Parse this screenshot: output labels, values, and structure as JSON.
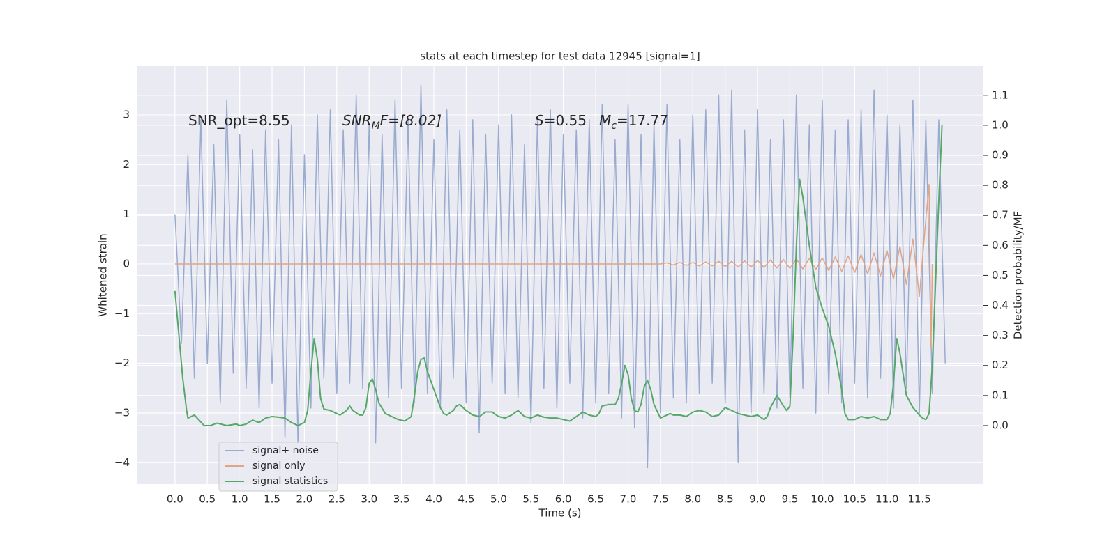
{
  "chart_data": {
    "type": "line",
    "title": "stats at each timestep for test data 12945 [signal=1]",
    "x_label": "Time (s)",
    "y_label": "Whitened strain",
    "y2_label": "Detection probability/MF",
    "xlim": [
      -0.58,
      12.49
    ],
    "ylim": [
      -4.43,
      3.98
    ],
    "y2lim": [
      -0.195,
      1.197
    ],
    "xticks": [
      {
        "value": 0,
        "label": "0.0"
      },
      0.5,
      {
        "value": 1,
        "label": "1.0"
      },
      1.5,
      {
        "value": 2,
        "label": "2.0"
      },
      2.5,
      {
        "value": 3,
        "label": "3.0"
      },
      3.5,
      {
        "value": 4,
        "label": "4.0"
      },
      4.5,
      {
        "value": 5,
        "label": "5.0"
      },
      5.5,
      {
        "value": 6,
        "label": "6.0"
      },
      6.5,
      {
        "value": 7,
        "label": "7.0"
      },
      7.5,
      {
        "value": 8,
        "label": "8.0"
      },
      8.5,
      {
        "value": 9,
        "label": "9.0"
      },
      9.5,
      {
        "value": 10,
        "label": "10.0"
      },
      10.5,
      {
        "value": 11,
        "label": "11.0"
      },
      11.5
    ],
    "yticks": [
      {
        "value": -4,
        "label": "−4"
      },
      {
        "value": -3,
        "label": "−3"
      },
      {
        "value": -2,
        "label": "−2"
      },
      {
        "value": -1,
        "label": "−1"
      },
      0,
      1,
      2,
      3
    ],
    "y2ticks": [
      {
        "value": 0,
        "label": "0.0"
      },
      0.1,
      0.2,
      0.3,
      0.4,
      0.5,
      0.6,
      0.7,
      0.8,
      0.9,
      {
        "value": 1,
        "label": "1.0"
      },
      1.1
    ],
    "grid": true,
    "legend": "lower left",
    "annotations": [
      {
        "text": "SNR_opt=8.55"
      },
      {
        "text": "SNR",
        "sub": "M",
        "rest": "F=[8.02]"
      },
      {
        "text": "S",
        "rest": "=0.55"
      },
      {
        "text": "M",
        "sub": "c",
        "rest": "=17.77"
      }
    ],
    "series": [
      {
        "name": "signal+ noise",
        "color": "#9aabd0",
        "axis": "y",
        "x": [
          0.0,
          0.1,
          0.2,
          0.3,
          0.4,
          0.5,
          0.6,
          0.7,
          0.8,
          0.9,
          1.0,
          1.1,
          1.2,
          1.3,
          1.4,
          1.5,
          1.6,
          1.7,
          1.8,
          1.9,
          2.0,
          2.1,
          2.2,
          2.3,
          2.4,
          2.5,
          2.6,
          2.7,
          2.8,
          2.9,
          3.0,
          3.1,
          3.2,
          3.3,
          3.4,
          3.5,
          3.6,
          3.7,
          3.8,
          3.9,
          4.0,
          4.1,
          4.2,
          4.3,
          4.4,
          4.5,
          4.6,
          4.7,
          4.8,
          4.9,
          5.0,
          5.1,
          5.2,
          5.3,
          5.4,
          5.5,
          5.6,
          5.7,
          5.8,
          5.9,
          6.0,
          6.1,
          6.2,
          6.3,
          6.4,
          6.5,
          6.6,
          6.7,
          6.8,
          6.9,
          7.0,
          7.1,
          7.2,
          7.3,
          7.4,
          7.5,
          7.6,
          7.7,
          7.8,
          7.9,
          8.0,
          8.1,
          8.2,
          8.3,
          8.4,
          8.5,
          8.6,
          8.7,
          8.8,
          8.9,
          9.0,
          9.1,
          9.2,
          9.3,
          9.4,
          9.5,
          9.6,
          9.7,
          9.8,
          9.9,
          10.0,
          10.1,
          10.2,
          10.3,
          10.4,
          10.5,
          10.6,
          10.7,
          10.8,
          10.9,
          11.0,
          11.1,
          11.2,
          11.3,
          11.4,
          11.5,
          11.6,
          11.7,
          11.8,
          11.9
        ],
        "values": [
          1.0,
          -1.6,
          2.2,
          -2.3,
          2.9,
          -2.0,
          2.4,
          -2.8,
          3.3,
          -2.2,
          2.6,
          -2.5,
          2.3,
          -2.9,
          2.7,
          -2.4,
          2.5,
          -3.5,
          2.8,
          -3.6,
          2.2,
          -2.9,
          3.0,
          -2.3,
          3.1,
          -2.6,
          2.7,
          -2.4,
          3.4,
          -2.5,
          2.8,
          -3.6,
          2.6,
          -2.7,
          3.3,
          -2.5,
          2.9,
          -2.8,
          3.6,
          -2.6,
          2.5,
          -2.9,
          3.1,
          -2.3,
          2.7,
          -2.8,
          2.9,
          -3.4,
          2.6,
          -2.4,
          2.8,
          -2.6,
          3.0,
          -2.7,
          2.4,
          -3.2,
          2.9,
          -2.5,
          3.1,
          -2.9,
          2.6,
          -2.4,
          2.7,
          -3.1,
          2.9,
          -2.8,
          3.2,
          -2.6,
          2.5,
          -3.1,
          3.2,
          -3.3,
          2.6,
          -4.1,
          2.8,
          -3.0,
          3.2,
          -2.7,
          2.5,
          -2.8,
          3.0,
          -2.6,
          3.1,
          -2.4,
          3.4,
          -2.8,
          3.5,
          -4.0,
          2.7,
          -3.0,
          3.1,
          -2.6,
          2.5,
          -2.9,
          2.9,
          -2.7,
          3.4,
          -2.5,
          2.8,
          -3.0,
          3.3,
          -2.6,
          2.7,
          -2.8,
          2.9,
          -2.4,
          3.1,
          -2.7,
          3.5,
          -2.3,
          3.0,
          -2.9,
          2.8,
          -2.5,
          3.3,
          -3.0,
          2.9,
          -2.6,
          2.9,
          -2.0
        ]
      },
      {
        "name": "signal only",
        "color": "#e0a487",
        "axis": "y",
        "x": [
          0.0,
          7.5,
          7.6,
          7.7,
          7.8,
          7.9,
          8.0,
          8.1,
          8.2,
          8.3,
          8.4,
          8.5,
          8.6,
          8.7,
          8.8,
          8.9,
          9.0,
          9.1,
          9.2,
          9.3,
          9.4,
          9.5,
          9.6,
          9.7,
          9.8,
          9.9,
          10.0,
          10.1,
          10.2,
          10.3,
          10.4,
          10.5,
          10.6,
          10.7,
          10.8,
          10.9,
          11.0,
          11.1,
          11.2,
          11.3,
          11.4,
          11.5,
          11.6,
          11.65,
          11.68,
          11.7
        ],
        "values": [
          0,
          0,
          0.02,
          -0.02,
          0.03,
          -0.03,
          0.03,
          -0.04,
          0.04,
          -0.04,
          0.05,
          -0.05,
          0.05,
          -0.06,
          0.06,
          -0.06,
          0.07,
          -0.07,
          0.08,
          -0.08,
          0.09,
          -0.09,
          0.1,
          -0.1,
          0.11,
          -0.11,
          0.12,
          -0.13,
          0.14,
          -0.15,
          0.16,
          -0.17,
          0.19,
          -0.2,
          0.22,
          -0.24,
          0.27,
          -0.3,
          0.35,
          -0.41,
          0.5,
          -0.65,
          0.9,
          1.6,
          -1.7,
          0.0
        ]
      },
      {
        "name": "signal statistics",
        "color": "#55a868",
        "axis": "y2",
        "x": [
          0.0,
          0.12,
          0.18,
          0.2,
          0.3,
          0.45,
          0.55,
          0.65,
          0.8,
          0.95,
          1.0,
          1.1,
          1.2,
          1.3,
          1.4,
          1.5,
          1.6,
          1.7,
          1.8,
          1.9,
          2.0,
          2.05,
          2.1,
          2.15,
          2.2,
          2.25,
          2.3,
          2.4,
          2.5,
          2.55,
          2.65,
          2.7,
          2.75,
          2.85,
          2.9,
          2.95,
          3.0,
          3.05,
          3.1,
          3.15,
          3.25,
          3.35,
          3.45,
          3.55,
          3.65,
          3.7,
          3.75,
          3.8,
          3.85,
          3.9,
          4.0,
          4.1,
          4.15,
          4.2,
          4.3,
          4.35,
          4.4,
          4.5,
          4.6,
          4.7,
          4.8,
          4.9,
          5.0,
          5.1,
          5.2,
          5.3,
          5.4,
          5.5,
          5.6,
          5.7,
          5.8,
          5.9,
          6.0,
          6.1,
          6.2,
          6.3,
          6.4,
          6.5,
          6.55,
          6.6,
          6.7,
          6.8,
          6.85,
          6.9,
          6.95,
          7.0,
          7.05,
          7.1,
          7.15,
          7.2,
          7.25,
          7.3,
          7.35,
          7.4,
          7.5,
          7.55,
          7.65,
          7.7,
          7.8,
          7.9,
          8.0,
          8.1,
          8.2,
          8.3,
          8.4,
          8.5,
          8.6,
          8.7,
          8.8,
          8.9,
          9.0,
          9.1,
          9.15,
          9.2,
          9.3,
          9.4,
          9.45,
          9.5,
          9.55,
          9.6,
          9.65,
          9.7,
          9.8,
          9.9,
          10.0,
          10.1,
          10.2,
          10.3,
          10.35,
          10.4,
          10.5,
          10.6,
          10.7,
          10.8,
          10.9,
          11.0,
          11.05,
          11.1,
          11.15,
          11.2,
          11.3,
          11.4,
          11.5,
          11.55,
          11.6,
          11.65,
          11.7,
          11.8,
          11.85
        ],
        "values": [
          0.448,
          0.158,
          0.05,
          0.025,
          0.035,
          0.0,
          0.0,
          0.008,
          0.0,
          0.005,
          0.0,
          0.005,
          0.018,
          0.01,
          0.025,
          0.03,
          0.028,
          0.025,
          0.01,
          0.0,
          0.01,
          0.05,
          0.18,
          0.29,
          0.22,
          0.09,
          0.055,
          0.05,
          0.04,
          0.035,
          0.05,
          0.065,
          0.05,
          0.035,
          0.035,
          0.06,
          0.14,
          0.155,
          0.12,
          0.075,
          0.04,
          0.03,
          0.02,
          0.015,
          0.03,
          0.1,
          0.18,
          0.22,
          0.225,
          0.18,
          0.12,
          0.06,
          0.04,
          0.035,
          0.05,
          0.065,
          0.07,
          0.05,
          0.035,
          0.03,
          0.045,
          0.045,
          0.03,
          0.025,
          0.035,
          0.05,
          0.03,
          0.025,
          0.035,
          0.028,
          0.025,
          0.025,
          0.02,
          0.015,
          0.03,
          0.045,
          0.035,
          0.03,
          0.04,
          0.065,
          0.07,
          0.07,
          0.09,
          0.14,
          0.2,
          0.17,
          0.09,
          0.05,
          0.045,
          0.07,
          0.13,
          0.15,
          0.12,
          0.07,
          0.025,
          0.03,
          0.04,
          0.035,
          0.035,
          0.03,
          0.045,
          0.05,
          0.045,
          0.03,
          0.035,
          0.06,
          0.05,
          0.04,
          0.035,
          0.03,
          0.035,
          0.02,
          0.03,
          0.06,
          0.1,
          0.065,
          0.05,
          0.065,
          0.3,
          0.6,
          0.82,
          0.76,
          0.6,
          0.46,
          0.39,
          0.33,
          0.24,
          0.12,
          0.04,
          0.02,
          0.02,
          0.03,
          0.025,
          0.03,
          0.02,
          0.02,
          0.04,
          0.14,
          0.29,
          0.24,
          0.1,
          0.06,
          0.035,
          0.025,
          0.02,
          0.04,
          0.2,
          0.75,
          1.0
        ]
      }
    ]
  }
}
